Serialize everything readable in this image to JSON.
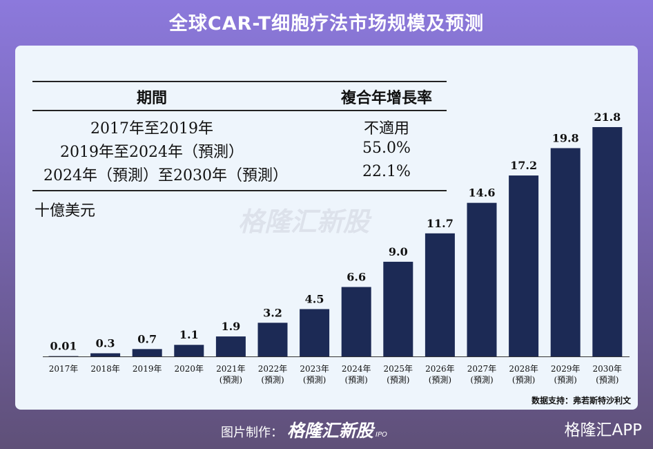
{
  "title": "全球CAR-T细胞疗法市场规模及预测",
  "cagr_table": {
    "headers": [
      "期間",
      "複合年增長率"
    ],
    "rows": [
      {
        "period": "2017年至2019年",
        "rate": "不適用"
      },
      {
        "period": "2019年至2024年（預測）",
        "rate": "55.0%"
      },
      {
        "period": "2024年（預測）至2030年（預測）",
        "rate": "22.1%"
      }
    ]
  },
  "chart_data": {
    "type": "bar",
    "ylabel": "十億美元",
    "categories": [
      [
        "2017年",
        ""
      ],
      [
        "2018年",
        ""
      ],
      [
        "2019年",
        ""
      ],
      [
        "2020年",
        ""
      ],
      [
        "2021年",
        "(預測)"
      ],
      [
        "2022年",
        "(預測)"
      ],
      [
        "2023年",
        "(預測)"
      ],
      [
        "2024年",
        "(預測)"
      ],
      [
        "2025年",
        "(預測)"
      ],
      [
        "2026年",
        "(預測)"
      ],
      [
        "2027年",
        "(預測)"
      ],
      [
        "2028年",
        "(預測)"
      ],
      [
        "2029年",
        "(預測)"
      ],
      [
        "2030年",
        "(預測)"
      ]
    ],
    "values": [
      0.01,
      0.3,
      0.7,
      1.1,
      1.9,
      3.2,
      4.5,
      6.6,
      9.0,
      11.7,
      14.6,
      17.2,
      19.8,
      21.8
    ],
    "value_labels": [
      "0.01",
      "0.3",
      "0.7",
      "1.1",
      "1.9",
      "3.2",
      "4.5",
      "6.6",
      "9.0",
      "11.7",
      "14.6",
      "17.2",
      "19.8",
      "21.8"
    ],
    "bar_color": "#1c2a55",
    "grid": false
  },
  "source": "数据支持：弗若斯特沙利文",
  "watermark": "格隆汇新股",
  "footer": {
    "credit_label": "图片制作：",
    "credit_brand": "格隆汇新股",
    "credit_sub": "IPO",
    "app": "格隆汇APP"
  }
}
